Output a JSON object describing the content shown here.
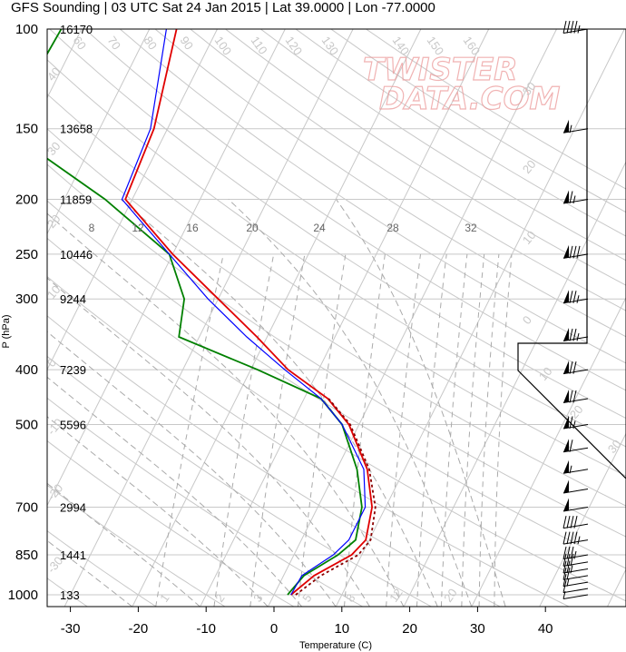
{
  "title": "GFS Sounding | 03 UTC Sat 24 Jan 2015 | Lat 39.0000 | Lon -77.0000",
  "watermark": [
    "TWISTER",
    "DATA.COM"
  ],
  "chart_data": {
    "type": "line",
    "subtype": "skew-t log-p sounding",
    "xlabel": "Temperature (C)",
    "ylabel": "P (hPa)",
    "xlim": [
      -34,
      52
    ],
    "ylim": [
      1050,
      100
    ],
    "yscale": "log",
    "x_ticks": [
      -30,
      -20,
      -10,
      0,
      10,
      20,
      30,
      40
    ],
    "pressure_levels": [
      {
        "p": 100,
        "height": "16170"
      },
      {
        "p": 150,
        "height": "13658"
      },
      {
        "p": 200,
        "height": "11859"
      },
      {
        "p": 250,
        "height": "10446"
      },
      {
        "p": 300,
        "height": "9244"
      },
      {
        "p": 400,
        "height": "7239"
      },
      {
        "p": 500,
        "height": "5596"
      },
      {
        "p": 700,
        "height": "2994"
      },
      {
        "p": 850,
        "height": "1441"
      },
      {
        "p": 1000,
        "height": "133"
      }
    ],
    "mixing_ratio_labels": [
      "8",
      "12",
      "16",
      "20",
      "24",
      "28",
      "32"
    ],
    "isotherm_labels": [
      "150",
      "60",
      "70",
      "80",
      "90",
      "100",
      "110",
      "120",
      "130",
      "140",
      "150",
      "160"
    ],
    "adiabat_labels": [
      "40",
      "30",
      "20",
      "10",
      "0",
      "-10",
      "-20",
      "-30",
      "30",
      "20",
      "10",
      "0",
      "10",
      "20",
      "30"
    ],
    "series": [
      {
        "key": "temperature",
        "color": "#e00000",
        "points": [
          [
            1000,
            2.5
          ],
          [
            925,
            4.5
          ],
          [
            850,
            8.5
          ],
          [
            800,
            9.5
          ],
          [
            700,
            8.0
          ],
          [
            600,
            4.5
          ],
          [
            500,
            -1.5
          ],
          [
            450,
            -6.5
          ],
          [
            400,
            -14.5
          ],
          [
            350,
            -21.5
          ],
          [
            300,
            -30.0
          ],
          [
            250,
            -40.0
          ],
          [
            200,
            -51.0
          ],
          [
            150,
            -52.0
          ],
          [
            100,
            -56.0
          ]
        ]
      },
      {
        "key": "virtual_temperature",
        "color": "#8b0000",
        "dashed": true,
        "points": [
          [
            1000,
            3.2
          ],
          [
            925,
            5.5
          ],
          [
            850,
            9.5
          ],
          [
            800,
            10.2
          ],
          [
            700,
            8.5
          ],
          [
            600,
            4.8
          ],
          [
            500,
            -1.3
          ],
          [
            450,
            -6.4
          ]
        ]
      },
      {
        "key": "dewpoint",
        "color": "#008000",
        "points": [
          [
            1000,
            2.0
          ],
          [
            925,
            3.0
          ],
          [
            850,
            6.5
          ],
          [
            800,
            8.0
          ],
          [
            700,
            6.5
          ],
          [
            600,
            3.0
          ],
          [
            500,
            -2.5
          ],
          [
            450,
            -7.5
          ],
          [
            400,
            -19.0
          ],
          [
            350,
            -33.0
          ],
          [
            300,
            -35.0
          ],
          [
            250,
            -40.5
          ],
          [
            200,
            -54.0
          ],
          [
            150,
            -74.0
          ],
          [
            100,
            -73.0
          ]
        ]
      },
      {
        "key": "parcel",
        "color": "#0000ff",
        "points": [
          [
            1000,
            2.5
          ],
          [
            925,
            2.7
          ],
          [
            850,
            5.8
          ],
          [
            800,
            7.0
          ],
          [
            700,
            7.0
          ],
          [
            600,
            4.0
          ],
          [
            500,
            -2.5
          ],
          [
            450,
            -7.5
          ],
          [
            400,
            -15.0
          ],
          [
            350,
            -23.0
          ],
          [
            300,
            -31.5
          ],
          [
            250,
            -40.5
          ],
          [
            200,
            -51.5
          ],
          [
            150,
            -52.5
          ],
          [
            100,
            -57.5
          ]
        ]
      }
    ],
    "wind_barbs": [
      {
        "p": 1000,
        "barb": "light"
      },
      {
        "p": 975,
        "barb": "10kt"
      },
      {
        "p": 950,
        "barb": "15kt"
      },
      {
        "p": 925,
        "barb": "20kt"
      },
      {
        "p": 900,
        "barb": "25kt"
      },
      {
        "p": 875,
        "barb": "30kt"
      },
      {
        "p": 850,
        "barb": "35kt"
      },
      {
        "p": 800,
        "barb": "45kt"
      },
      {
        "p": 750,
        "barb": "40kt"
      },
      {
        "p": 700,
        "barb": "50kt"
      },
      {
        "p": 650,
        "barb": "50kt"
      },
      {
        "p": 600,
        "barb": "55kt"
      },
      {
        "p": 550,
        "barb": "60kt"
      },
      {
        "p": 500,
        "barb": "65kt"
      },
      {
        "p": 450,
        "barb": "70kt"
      },
      {
        "p": 400,
        "barb": "70kt"
      },
      {
        "p": 350,
        "barb": "75kt"
      },
      {
        "p": 300,
        "barb": "75kt"
      },
      {
        "p": 250,
        "barb": "80kt"
      },
      {
        "p": 200,
        "barb": "65kt"
      },
      {
        "p": 150,
        "barb": "55kt"
      },
      {
        "p": 100,
        "barb": "45kt"
      }
    ]
  }
}
